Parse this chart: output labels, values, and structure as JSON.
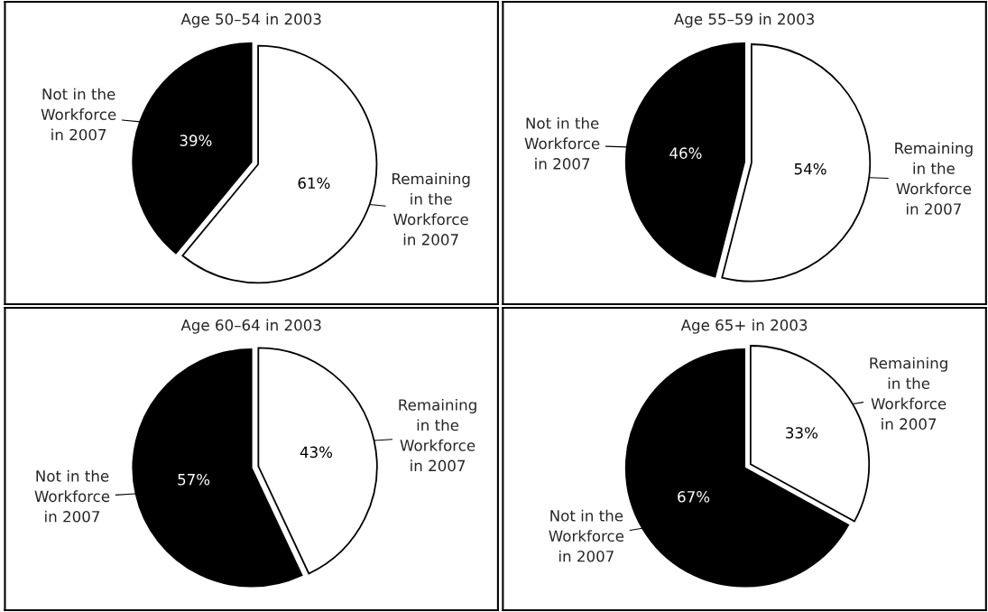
{
  "chart_data": [
    {
      "type": "pie",
      "title": "Age 50–54 in 2003",
      "categories": [
        "Remaining\nin the\nWorkforce\nin 2007",
        "Not in the\nWorkforce\nin 2007"
      ],
      "values": [
        61,
        39
      ],
      "value_labels": [
        "61%",
        "39%"
      ],
      "colors": [
        "#ffffff",
        "#000000"
      ]
    },
    {
      "type": "pie",
      "title": "Age 55–59 in 2003",
      "categories": [
        "Remaining\nin the\nWorkforce\nin 2007",
        "Not in the\nWorkforce\nin 2007"
      ],
      "values": [
        54,
        46
      ],
      "value_labels": [
        "54%",
        "46%"
      ],
      "colors": [
        "#ffffff",
        "#000000"
      ]
    },
    {
      "type": "pie",
      "title": "Age 60–64 in 2003",
      "categories": [
        "Remaining\nin the\nWorkforce\nin 2007",
        "Not in the\nWorkforce\nin 2007"
      ],
      "values": [
        43,
        57
      ],
      "value_labels": [
        "43%",
        "57%"
      ],
      "colors": [
        "#ffffff",
        "#000000"
      ]
    },
    {
      "type": "pie",
      "title": "Age 65+ in 2003",
      "categories": [
        "Remaining\nin the\nWorkforce\nin 2007",
        "Not in the\nWorkforce\nin 2007"
      ],
      "values": [
        33,
        67
      ],
      "value_labels": [
        "33%",
        "67%"
      ],
      "colors": [
        "#ffffff",
        "#000000"
      ]
    }
  ]
}
